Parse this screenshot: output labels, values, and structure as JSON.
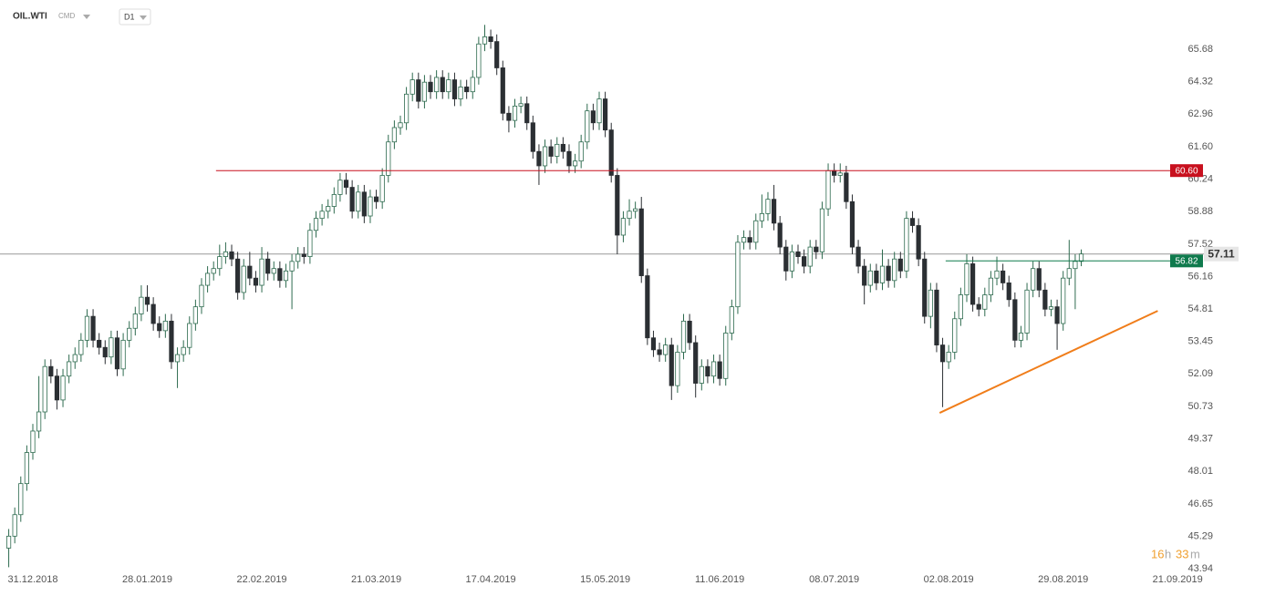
{
  "chart_data": {
    "type": "candlestick",
    "symbol": "OIL.WTI",
    "market": "CMD",
    "interval": "D1",
    "countdown": [
      "16",
      "h",
      "33",
      "m"
    ],
    "xlim": [
      -1.45,
      208.5
    ],
    "xticks": [
      {
        "value": 4,
        "label": "31.12.2018"
      },
      {
        "value": 23,
        "label": "28.01.2019"
      },
      {
        "value": 42,
        "label": "22.02.2019"
      },
      {
        "value": 61,
        "label": "21.03.2019"
      },
      {
        "value": 80,
        "label": "17.04.2019"
      },
      {
        "value": 99,
        "label": "15.05.2019"
      },
      {
        "value": 118,
        "label": "11.06.2019"
      },
      {
        "value": 137,
        "label": "08.07.2019"
      },
      {
        "value": 156,
        "label": "02.08.2019"
      },
      {
        "value": 175,
        "label": "29.08.2019"
      },
      {
        "value": 194,
        "label": "21.09.2019"
      }
    ],
    "ylim": [
      43.94,
      67.74
    ],
    "yticks": [
      43.94,
      45.29,
      46.65,
      48.01,
      49.37,
      50.73,
      52.09,
      53.45,
      54.81,
      56.16,
      57.52,
      58.88,
      60.24,
      {
        "value": 61.6,
        "label": "61.60"
      },
      62.96,
      64.32,
      65.68
    ],
    "grid": false,
    "up_color": "#ffffff",
    "up_border": "#2e6b4f",
    "down_color": "#2b2f33",
    "open": [
      44.8,
      45.3,
      46.2,
      47.5,
      48.8,
      49.7,
      50.5,
      52.4,
      52.0,
      51.0,
      52.0,
      52.6,
      52.9,
      53.5,
      54.5,
      53.5,
      53.2,
      52.8,
      53.6,
      52.3,
      53.5,
      54.0,
      54.6,
      55.3,
      55.0,
      54.2,
      53.9,
      54.3,
      52.6,
      52.9,
      53.2,
      54.2,
      54.9,
      55.8,
      56.3,
      56.5,
      57.0,
      57.2,
      56.9,
      55.5,
      56.6,
      56.1,
      55.8,
      56.9,
      56.3,
      56.5,
      56.0,
      56.4,
      56.8,
      57.1,
      57.0,
      58.1,
      58.6,
      58.9,
      59.1,
      59.6,
      60.2,
      59.9,
      58.9,
      59.7,
      58.7,
      59.5,
      59.3,
      60.4,
      61.8,
      62.4,
      62.6,
      63.8,
      64.4,
      63.5,
      64.3,
      63.9,
      64.5,
      63.9,
      64.4,
      63.6,
      64.1,
      63.9,
      64.5,
      65.9,
      66.2,
      66.0,
      64.9,
      63.0,
      62.7,
      63.3,
      63.4,
      62.6,
      61.4,
      60.8,
      61.6,
      61.2,
      61.7,
      61.4,
      60.8,
      61.0,
      61.8,
      63.1,
      62.6,
      63.6,
      62.3,
      60.4,
      57.9,
      58.6,
      58.9,
      59.0,
      56.2,
      53.6,
      53.1,
      52.9,
      53.3,
      51.6,
      53.0,
      54.3,
      53.4,
      51.7,
      52.4,
      52.0,
      52.6,
      51.9,
      53.8,
      54.9,
      57.6,
      57.8,
      57.6,
      58.5,
      58.8,
      59.4,
      58.4,
      57.4,
      56.4,
      57.2,
      57.0,
      56.6,
      57.4,
      57.2,
      59.0,
      60.6,
      60.4,
      60.5,
      59.3,
      57.4,
      56.6,
      55.8,
      56.4,
      55.9,
      56.6,
      56.0,
      56.9,
      56.4,
      58.6,
      58.3,
      56.9,
      54.5,
      55.6,
      53.3,
      52.6,
      53.0,
      54.4,
      55.4,
      56.7,
      55.0,
      54.8,
      55.4,
      56.1,
      56.4,
      55.9,
      55.2,
      53.5,
      53.8,
      55.6,
      56.5,
      55.6,
      54.8,
      54.9,
      54.2,
      56.1,
      56.5,
      56.8
    ],
    "high": [
      45.6,
      46.5,
      47.8,
      49.1,
      50.0,
      52.0,
      52.7,
      52.7,
      52.3,
      52.3,
      52.9,
      53.2,
      53.8,
      54.8,
      54.8,
      53.8,
      53.5,
      53.9,
      53.9,
      53.8,
      54.3,
      54.9,
      55.8,
      55.8,
      55.3,
      54.5,
      54.6,
      54.6,
      53.2,
      53.5,
      54.5,
      55.2,
      56.1,
      56.6,
      56.8,
      57.5,
      57.6,
      57.5,
      57.2,
      56.9,
      57.2,
      56.4,
      57.4,
      57.2,
      56.8,
      56.8,
      56.7,
      57.1,
      57.4,
      57.4,
      58.4,
      58.9,
      59.2,
      59.4,
      59.9,
      60.5,
      60.5,
      60.2,
      60.0,
      60.0,
      59.8,
      59.8,
      60.7,
      62.1,
      62.7,
      62.9,
      64.1,
      64.7,
      64.7,
      64.6,
      64.6,
      64.8,
      64.8,
      64.7,
      64.7,
      64.4,
      64.4,
      64.8,
      66.2,
      66.7,
      66.5,
      66.3,
      65.2,
      63.3,
      63.6,
      63.7,
      63.7,
      62.9,
      61.7,
      61.9,
      61.9,
      62.0,
      62.0,
      61.7,
      61.3,
      62.1,
      63.4,
      63.4,
      63.9,
      63.9,
      62.6,
      60.7,
      58.9,
      59.4,
      59.3,
      59.5,
      56.5,
      53.9,
      53.4,
      53.6,
      53.6,
      53.3,
      54.6,
      54.6,
      53.7,
      52.7,
      52.7,
      52.9,
      52.9,
      54.1,
      55.2,
      57.9,
      58.1,
      58.1,
      58.8,
      59.6,
      59.7,
      60.0,
      58.7,
      57.7,
      57.5,
      57.5,
      57.3,
      57.7,
      57.7,
      59.3,
      60.9,
      60.9,
      60.9,
      60.8,
      59.6,
      57.7,
      56.9,
      56.7,
      56.7,
      57.3,
      56.9,
      57.2,
      57.2,
      58.9,
      58.9,
      58.6,
      57.2,
      55.9,
      55.9,
      53.6,
      53.3,
      54.7,
      55.7,
      57.1,
      57.0,
      55.3,
      55.7,
      56.4,
      57.0,
      56.7,
      56.2,
      55.5,
      54.1,
      55.9,
      56.8,
      56.8,
      55.9,
      55.2,
      55.2,
      56.4,
      57.7,
      57.1,
      57.3
    ],
    "low": [
      44.0,
      45.0,
      45.9,
      47.2,
      48.5,
      49.4,
      50.2,
      51.7,
      50.6,
      50.7,
      51.7,
      52.3,
      52.6,
      53.2,
      53.2,
      52.9,
      52.5,
      52.5,
      52.0,
      52.0,
      53.2,
      53.7,
      54.3,
      54.7,
      53.9,
      53.6,
      53.6,
      52.3,
      51.5,
      52.6,
      52.9,
      53.9,
      54.6,
      55.5,
      56.0,
      56.2,
      56.7,
      56.6,
      55.2,
      55.2,
      55.8,
      55.5,
      55.5,
      56.0,
      56.0,
      55.7,
      55.7,
      54.8,
      56.5,
      56.7,
      56.7,
      57.8,
      58.3,
      58.6,
      58.8,
      59.3,
      59.6,
      58.6,
      58.6,
      58.4,
      58.4,
      59.0,
      59.0,
      60.1,
      61.5,
      62.1,
      62.3,
      63.5,
      63.2,
      63.2,
      63.6,
      63.6,
      63.6,
      63.6,
      63.3,
      63.3,
      63.6,
      63.6,
      64.2,
      65.6,
      65.7,
      64.6,
      62.7,
      62.2,
      62.4,
      63.0,
      62.3,
      61.1,
      60.0,
      60.5,
      60.9,
      60.9,
      61.1,
      60.5,
      60.5,
      60.7,
      61.5,
      62.3,
      62.3,
      62.0,
      60.1,
      57.1,
      57.6,
      58.3,
      58.6,
      55.9,
      53.3,
      52.8,
      52.6,
      52.6,
      51.0,
      51.3,
      52.7,
      53.1,
      51.1,
      51.4,
      51.7,
      51.7,
      51.6,
      51.6,
      53.5,
      54.6,
      57.3,
      57.3,
      57.3,
      58.2,
      58.5,
      58.1,
      57.1,
      56.0,
      56.1,
      56.7,
      56.3,
      56.3,
      56.9,
      56.9,
      58.7,
      60.1,
      60.1,
      59.0,
      57.1,
      56.3,
      55.0,
      55.5,
      55.6,
      55.6,
      55.7,
      55.7,
      56.1,
      56.1,
      58.0,
      56.6,
      54.2,
      54.0,
      53.0,
      50.7,
      52.3,
      52.7,
      54.1,
      55.1,
      54.7,
      54.5,
      54.5,
      55.1,
      55.8,
      55.6,
      54.9,
      53.2,
      53.2,
      53.5,
      55.3,
      55.3,
      54.5,
      54.5,
      53.1,
      53.9,
      55.8,
      54.8,
      56.6
    ],
    "close": [
      45.3,
      46.2,
      47.5,
      48.8,
      49.7,
      50.5,
      52.4,
      52.0,
      51.0,
      52.0,
      52.6,
      52.9,
      53.5,
      54.5,
      53.5,
      53.2,
      52.8,
      53.6,
      52.3,
      53.5,
      54.0,
      54.6,
      55.3,
      55.0,
      54.2,
      53.9,
      54.3,
      52.6,
      52.9,
      53.2,
      54.2,
      54.9,
      55.8,
      56.3,
      56.5,
      57.0,
      57.2,
      56.9,
      55.5,
      56.6,
      56.1,
      55.8,
      56.9,
      56.3,
      56.5,
      56.0,
      56.4,
      56.8,
      57.1,
      57.0,
      58.1,
      58.6,
      58.9,
      59.1,
      59.6,
      60.2,
      59.9,
      58.9,
      59.7,
      58.7,
      59.5,
      59.3,
      60.4,
      61.8,
      62.4,
      62.6,
      63.8,
      64.4,
      63.5,
      64.3,
      63.9,
      64.5,
      63.9,
      64.4,
      63.6,
      64.1,
      63.9,
      64.5,
      65.9,
      66.2,
      66.0,
      64.9,
      63.0,
      62.7,
      63.3,
      63.4,
      62.6,
      61.4,
      60.8,
      61.6,
      61.2,
      61.7,
      61.4,
      60.8,
      61.0,
      61.8,
      63.1,
      62.6,
      63.6,
      62.3,
      60.4,
      57.9,
      58.6,
      58.9,
      59.0,
      56.2,
      53.6,
      53.1,
      52.9,
      53.3,
      51.6,
      53.0,
      54.3,
      53.4,
      51.7,
      52.4,
      52.0,
      52.6,
      51.9,
      53.8,
      54.9,
      57.6,
      57.8,
      57.6,
      58.5,
      58.8,
      59.4,
      58.4,
      57.4,
      56.4,
      57.2,
      57.0,
      56.6,
      57.4,
      57.2,
      59.0,
      60.6,
      60.4,
      60.5,
      59.3,
      57.4,
      56.6,
      55.8,
      56.4,
      55.9,
      56.6,
      56.0,
      56.9,
      56.4,
      58.6,
      58.3,
      56.9,
      54.5,
      55.6,
      53.3,
      52.6,
      53.0,
      54.4,
      55.4,
      56.7,
      55.0,
      54.8,
      55.4,
      56.1,
      56.4,
      55.9,
      55.2,
      53.5,
      53.8,
      55.6,
      56.5,
      55.6,
      54.8,
      54.9,
      54.2,
      56.1,
      56.5,
      56.8,
      57.11
    ],
    "levels": [
      {
        "value": 60.6,
        "label": "60.60",
        "x": 34.4,
        "color": "#c8101e"
      },
      {
        "value": 56.82,
        "x": 155.5,
        "color": "#0f7a4d"
      }
    ],
    "trendline": {
      "x": [
        154.5,
        190.7
      ],
      "values": [
        50.46,
        54.73
      ],
      "color": "#f07d1a"
    }
  }
}
